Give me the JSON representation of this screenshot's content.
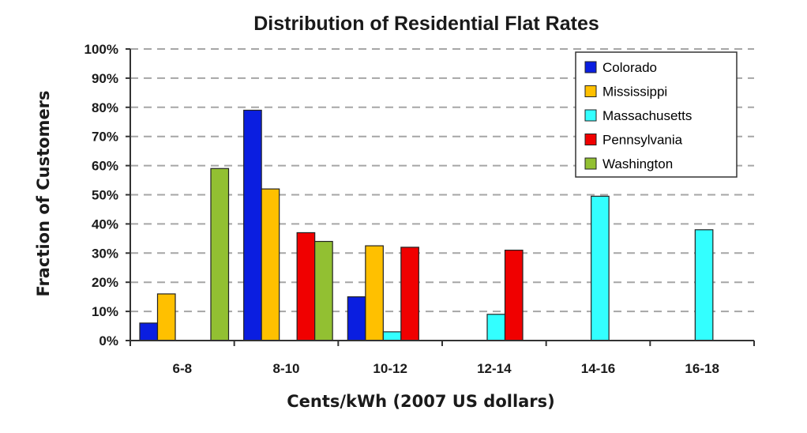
{
  "chart_data": {
    "type": "bar",
    "title": "Distribution of Residential Flat Rates",
    "xlabel": "Cents/kWh  (2007 US dollars)",
    "ylabel": "Fraction of Customers",
    "ylim": [
      0,
      100
    ],
    "y_ticks": [
      "0%",
      "10%",
      "20%",
      "30%",
      "40%",
      "50%",
      "60%",
      "70%",
      "80%",
      "90%",
      "100%"
    ],
    "grid": true,
    "legend_position": "top-right",
    "categories": [
      "6-8",
      "8-10",
      "10-12",
      "12-14",
      "14-16",
      "16-18"
    ],
    "series": [
      {
        "name": "Colorado",
        "color": "#0a1ee0",
        "values": [
          6,
          79,
          15,
          0,
          0,
          0
        ]
      },
      {
        "name": "Mississippi",
        "color": "#ffc000",
        "values": [
          16,
          52,
          32.5,
          0,
          0,
          0
        ]
      },
      {
        "name": "Massachusetts",
        "color": "#33ffff",
        "values": [
          0,
          0,
          3,
          9,
          49.5,
          38
        ]
      },
      {
        "name": "Pennsylvania",
        "color": "#f00000",
        "values": [
          0,
          37,
          32,
          31,
          0,
          0
        ]
      },
      {
        "name": "Washington",
        "color": "#92c032",
        "values": [
          59,
          34,
          0,
          0,
          0,
          0
        ]
      }
    ]
  }
}
